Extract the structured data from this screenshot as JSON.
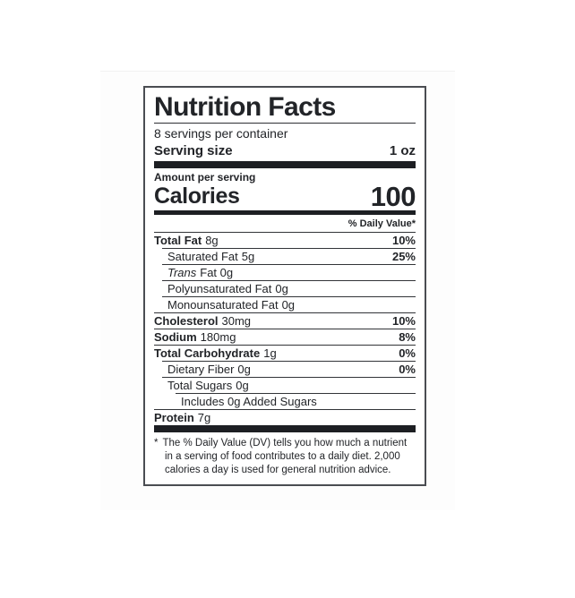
{
  "colors": {
    "ink": "#222428",
    "bar": "#1d1f23",
    "border": "#4a4d52"
  },
  "label": {
    "title": "Nutrition Facts",
    "servings_per_container": "8 servings per container",
    "serving_size": {
      "label": "Serving size",
      "value": "1 oz"
    },
    "amount_per_serving": "Amount per serving",
    "calories": {
      "label": "Calories",
      "value": "100"
    },
    "daily_value_header": "% Daily Value*",
    "rows": [
      {
        "name": "Total Fat",
        "amount": "8g",
        "dv": "10%"
      },
      {
        "name": "Saturated Fat",
        "amount": "5g",
        "dv": "25%"
      },
      {
        "name": "Trans",
        "amount": "Fat 0g",
        "dv": ""
      },
      {
        "name": "Polyunsaturated Fat",
        "amount": "0g",
        "dv": ""
      },
      {
        "name": "Monounsaturated Fat",
        "amount": "0g",
        "dv": ""
      },
      {
        "name": "Cholesterol",
        "amount": "30mg",
        "dv": "10%"
      },
      {
        "name": "Sodium",
        "amount": "180mg",
        "dv": "8%"
      },
      {
        "name": "Total Carbohydrate",
        "amount": "1g",
        "dv": "0%"
      },
      {
        "name": "Dietary Fiber",
        "amount": "0g",
        "dv": "0%"
      },
      {
        "name": "Total Sugars",
        "amount": "0g",
        "dv": ""
      },
      {
        "name": "Includes 0g Added Sugars",
        "amount": "",
        "dv": ""
      },
      {
        "name": "Protein",
        "amount": "7g",
        "dv": ""
      }
    ],
    "footnote": {
      "marker": "*",
      "text": "The % Daily Value (DV) tells you how much a nutrient in a serving of food contributes to a daily diet. 2,000 calories a day is used for general nutrition advice."
    }
  }
}
